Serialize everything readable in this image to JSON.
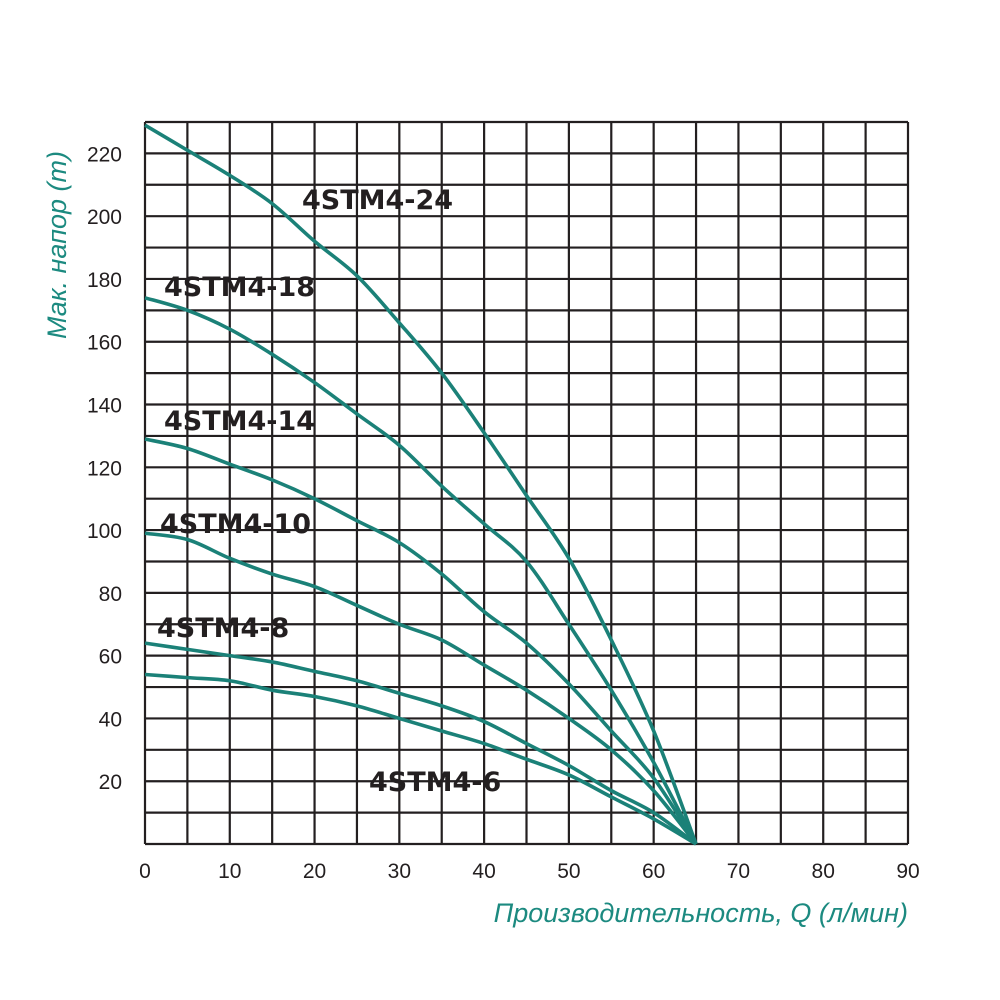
{
  "chart_data": {
    "type": "line",
    "title": "",
    "xlabel": "Производительность, Q (л/мин)",
    "ylabel": "Мак. напор (m)",
    "xlim": [
      0,
      90
    ],
    "ylim": [
      0,
      230
    ],
    "grid": true,
    "x_grid_step": 5,
    "y_grid_step": 10,
    "x_ticks": [
      0,
      10,
      20,
      30,
      40,
      50,
      60,
      70,
      80,
      90
    ],
    "y_ticks": [
      20,
      40,
      60,
      80,
      100,
      120,
      140,
      160,
      180,
      200,
      220
    ],
    "x": [
      0,
      5,
      10,
      15,
      20,
      25,
      30,
      35,
      40,
      45,
      50,
      55,
      60,
      65
    ],
    "series": [
      {
        "name": "4STM4-24",
        "values": [
          229,
          221,
          213,
          204,
          192,
          181,
          166,
          150,
          131,
          111,
          91,
          65,
          36,
          0
        ]
      },
      {
        "name": "4STM4-18",
        "values": [
          174,
          170,
          164,
          156,
          147,
          137,
          127,
          114,
          102,
          90,
          70,
          49,
          26,
          0
        ]
      },
      {
        "name": "4STM4-14",
        "values": [
          129,
          126,
          121,
          116,
          110,
          103,
          96,
          86,
          74,
          64,
          51,
          36,
          21,
          0
        ]
      },
      {
        "name": "4STM4-10",
        "values": [
          99,
          97,
          91,
          86,
          82,
          76,
          70,
          65,
          57,
          49,
          40,
          30,
          17,
          0
        ]
      },
      {
        "name": "4STM4-8",
        "values": [
          64,
          62,
          60,
          58,
          55,
          52,
          48,
          44,
          39,
          32,
          25,
          17,
          10,
          0
        ]
      },
      {
        "name": "4STM4-6",
        "values": [
          54,
          53,
          52,
          49,
          47,
          44,
          40,
          36,
          32,
          27,
          22,
          15,
          8,
          0
        ]
      }
    ],
    "colors": {
      "curve": "#1b8178",
      "axis_title": "#1c8a80",
      "grid": "#231f20",
      "text": "#231f20"
    }
  }
}
